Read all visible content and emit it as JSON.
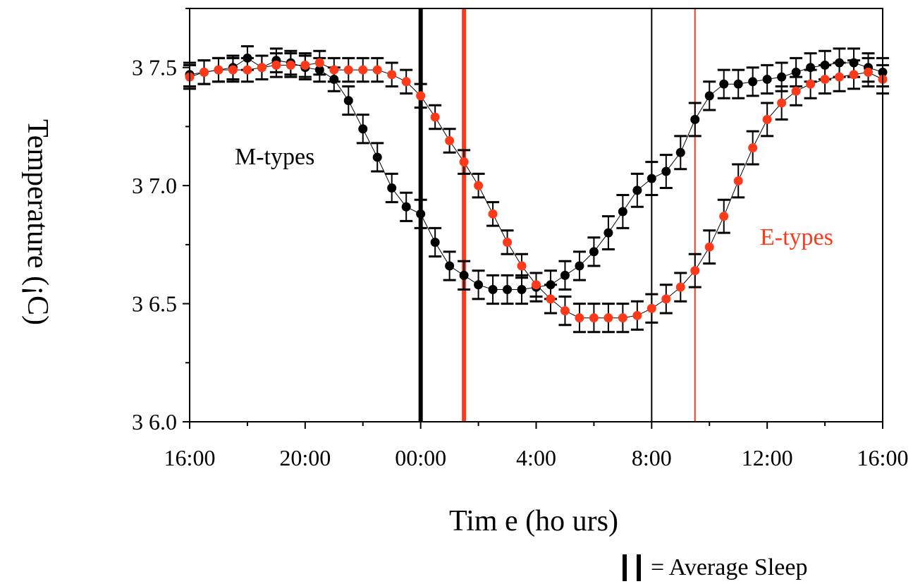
{
  "chart_data": {
    "type": "scatter",
    "title": "",
    "xlabel": "Tim e (ho urs)",
    "ylabel": "Temperature (¡C)",
    "x_unit": "hours",
    "xlim": [
      16,
      40
    ],
    "ylim": [
      36.0,
      37.75
    ],
    "xticks": [
      16,
      20,
      24,
      28,
      32,
      36,
      40
    ],
    "xtick_labels": [
      "16:00",
      "20:00",
      "00:00",
      "4:00",
      "8:00",
      "12:00",
      "16:00"
    ],
    "yticks": [
      36.0,
      36.5,
      37.0,
      37.5
    ],
    "ytick_labels": [
      "3 6.0",
      "3 6.5",
      "3 7.0",
      "3 7.5"
    ],
    "grid": false,
    "error_bars": true,
    "series": [
      {
        "name": "M-types",
        "color": "#000000",
        "x": [
          16.0,
          16.5,
          17.0,
          17.5,
          18.0,
          18.5,
          19.0,
          19.5,
          20.0,
          20.5,
          21.0,
          21.5,
          22.0,
          22.5,
          23.0,
          23.5,
          24.0,
          24.5,
          25.0,
          25.5,
          26.0,
          26.5,
          27.0,
          27.5,
          28.0,
          28.5,
          29.0,
          29.5,
          30.0,
          30.5,
          31.0,
          31.5,
          32.0,
          32.5,
          33.0,
          33.5,
          34.0,
          34.5,
          35.0,
          35.5,
          36.0,
          36.5,
          37.0,
          37.5,
          38.0,
          38.5,
          39.0,
          39.5,
          40.0
        ],
        "y": [
          37.47,
          37.48,
          37.49,
          37.5,
          37.54,
          37.5,
          37.53,
          37.52,
          37.5,
          37.49,
          37.45,
          37.36,
          37.24,
          37.12,
          36.99,
          36.91,
          36.88,
          36.76,
          36.66,
          36.62,
          36.58,
          36.56,
          36.56,
          36.56,
          36.57,
          36.58,
          36.62,
          36.66,
          36.72,
          36.8,
          36.89,
          36.98,
          37.03,
          37.06,
          37.14,
          37.28,
          37.38,
          37.43,
          37.43,
          37.44,
          37.45,
          37.46,
          37.48,
          37.5,
          37.51,
          37.52,
          37.52,
          37.5,
          37.48
        ],
        "error": [
          0.05,
          0.05,
          0.05,
          0.05,
          0.05,
          0.05,
          0.05,
          0.05,
          0.05,
          0.05,
          0.05,
          0.06,
          0.06,
          0.06,
          0.06,
          0.06,
          0.06,
          0.06,
          0.06,
          0.06,
          0.06,
          0.06,
          0.06,
          0.06,
          0.06,
          0.06,
          0.06,
          0.06,
          0.06,
          0.07,
          0.07,
          0.07,
          0.07,
          0.07,
          0.07,
          0.07,
          0.06,
          0.06,
          0.06,
          0.06,
          0.06,
          0.06,
          0.06,
          0.06,
          0.06,
          0.06,
          0.06,
          0.06,
          0.06
        ]
      },
      {
        "name": "E-types",
        "color": "#ff3a1a",
        "x": [
          16.0,
          16.5,
          17.0,
          17.5,
          18.0,
          18.5,
          19.0,
          19.5,
          20.0,
          20.5,
          21.0,
          21.5,
          22.0,
          22.5,
          23.0,
          23.5,
          24.0,
          24.5,
          25.0,
          25.5,
          26.0,
          26.5,
          27.0,
          27.5,
          28.0,
          28.5,
          29.0,
          29.5,
          30.0,
          30.5,
          31.0,
          31.5,
          32.0,
          32.5,
          33.0,
          33.5,
          34.0,
          34.5,
          35.0,
          35.5,
          36.0,
          36.5,
          37.0,
          37.5,
          38.0,
          38.5,
          39.0,
          39.5,
          40.0
        ],
        "y": [
          37.46,
          37.48,
          37.49,
          37.49,
          37.49,
          37.5,
          37.51,
          37.51,
          37.51,
          37.52,
          37.49,
          37.49,
          37.49,
          37.49,
          37.47,
          37.44,
          37.38,
          37.29,
          37.19,
          37.1,
          37.0,
          36.88,
          36.76,
          36.66,
          36.58,
          36.52,
          36.47,
          36.44,
          36.44,
          36.44,
          36.44,
          36.45,
          36.48,
          36.52,
          36.57,
          36.64,
          36.74,
          36.87,
          37.02,
          37.16,
          37.28,
          37.35,
          37.4,
          37.43,
          37.45,
          37.46,
          37.47,
          37.48,
          37.45
        ],
        "error": [
          0.05,
          0.05,
          0.05,
          0.05,
          0.05,
          0.05,
          0.05,
          0.05,
          0.05,
          0.05,
          0.05,
          0.05,
          0.05,
          0.05,
          0.05,
          0.05,
          0.05,
          0.05,
          0.05,
          0.05,
          0.05,
          0.05,
          0.05,
          0.05,
          0.05,
          0.06,
          0.06,
          0.06,
          0.06,
          0.06,
          0.06,
          0.06,
          0.06,
          0.06,
          0.06,
          0.07,
          0.07,
          0.07,
          0.07,
          0.07,
          0.07,
          0.07,
          0.06,
          0.06,
          0.06,
          0.06,
          0.06,
          0.06,
          0.06
        ]
      }
    ],
    "sleep_markers": [
      {
        "series": "M-types",
        "x": 24.0,
        "color": "#000000",
        "weight": "bold"
      },
      {
        "series": "M-types",
        "x": 32.0,
        "color": "#000000",
        "weight": "thin"
      },
      {
        "series": "E-types",
        "x": 25.5,
        "color": "#ff3a1a",
        "weight": "bold"
      },
      {
        "series": "E-types",
        "x": 33.5,
        "color": "#ff3a1a",
        "weight": "thin"
      }
    ],
    "annotations": [
      {
        "text": "M-types",
        "color": "#000000"
      },
      {
        "text": "E-types",
        "color": "#ff3a1a"
      }
    ],
    "legend": {
      "text": "= Average Sleep",
      "placement": "bottom-right"
    }
  }
}
